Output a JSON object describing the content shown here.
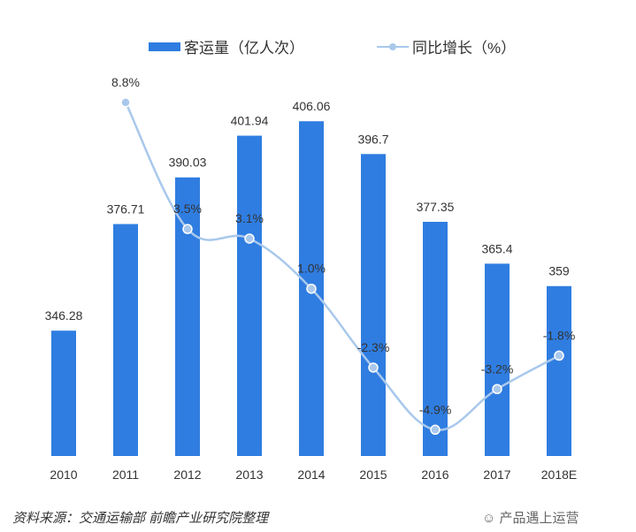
{
  "chart_data": {
    "type": "bar+line",
    "categories": [
      "2010",
      "2011",
      "2012",
      "2013",
      "2014",
      "2015",
      "2016",
      "2017",
      "2018E"
    ],
    "series": [
      {
        "name": "客运量（亿人次）",
        "type": "bar",
        "color": "#2f7de1",
        "values": [
          346.28,
          376.71,
          390.03,
          401.94,
          406.06,
          396.7,
          377.35,
          365.4,
          359
        ],
        "labels": [
          "346.28",
          "376.71",
          "390.03",
          "401.94",
          "406.06",
          "396.7",
          "377.35",
          "365.4",
          "359"
        ]
      },
      {
        "name": "同比增长（%）",
        "type": "line",
        "color": "#a9c8ec",
        "values": [
          null,
          8.8,
          3.5,
          3.1,
          1.0,
          -2.3,
          -4.9,
          -3.2,
          -1.8
        ],
        "labels": [
          "",
          "8.8%",
          "3.5%",
          "3.1%",
          "1.0%",
          "-2.3%",
          "-4.9%",
          "-3.2%",
          "-1.8%"
        ]
      }
    ],
    "ylim": [
      310.5,
      432.6
    ],
    "y2lim": [
      -6.0,
      11.9
    ],
    "grid": false,
    "legend": "top"
  },
  "source": "资料来源：交通运输部  前瞻产业研究院整理",
  "watermark": "产品遇上运营"
}
